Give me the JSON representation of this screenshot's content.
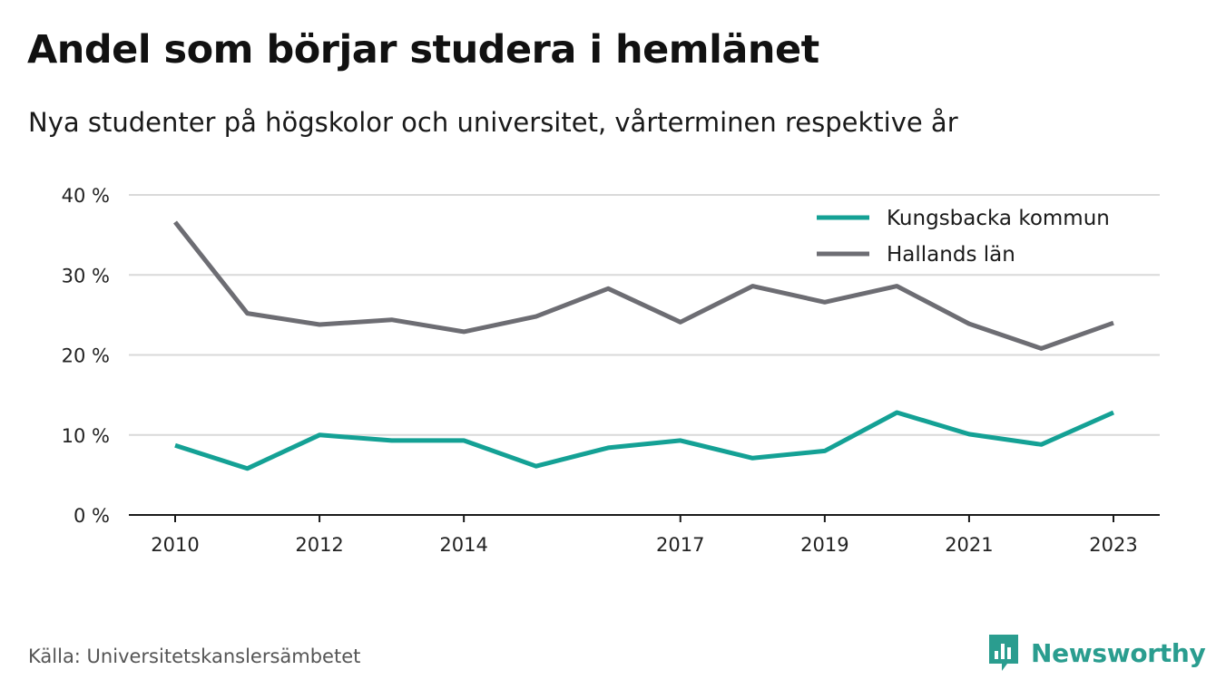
{
  "title": "Andel som börjar studera i hemlänet",
  "subtitle": "Nya studenter på högskolor och universitet, vårterminen respektive år",
  "source": "Källa: Universitetskanslersämbetet",
  "brand": {
    "name": "Newsworthy",
    "icon": "newsworthy-logo-icon",
    "color": "#2a9d8f"
  },
  "colors": {
    "grid": "#d9d9d9",
    "axis": "#1a1a1a"
  },
  "chart_data": {
    "type": "line",
    "x": [
      2010,
      2011,
      2012,
      2013,
      2014,
      2015,
      2016,
      2017,
      2018,
      2019,
      2020,
      2021,
      2022,
      2023
    ],
    "xticks": [
      2010,
      2012,
      2014,
      2017,
      2019,
      2021,
      2023
    ],
    "ylim": [
      0,
      40
    ],
    "yticks": [
      0,
      10,
      20,
      30,
      40
    ],
    "ytick_labels": [
      "0 %",
      "10 %",
      "20 %",
      "30 %",
      "40 %"
    ],
    "grid": true,
    "legend_position": "top-right",
    "series": [
      {
        "name": "Kungsbacka kommun",
        "color": "#14a195",
        "values": [
          8.7,
          5.8,
          10.0,
          9.3,
          9.3,
          6.1,
          8.4,
          9.3,
          7.1,
          8.0,
          12.8,
          10.1,
          8.8,
          12.8
        ]
      },
      {
        "name": "Hallands län",
        "color": "#6d6d73",
        "values": [
          36.6,
          25.2,
          23.8,
          24.4,
          22.9,
          24.8,
          28.3,
          24.1,
          28.6,
          26.6,
          28.6,
          23.9,
          20.8,
          24.0
        ]
      }
    ]
  }
}
